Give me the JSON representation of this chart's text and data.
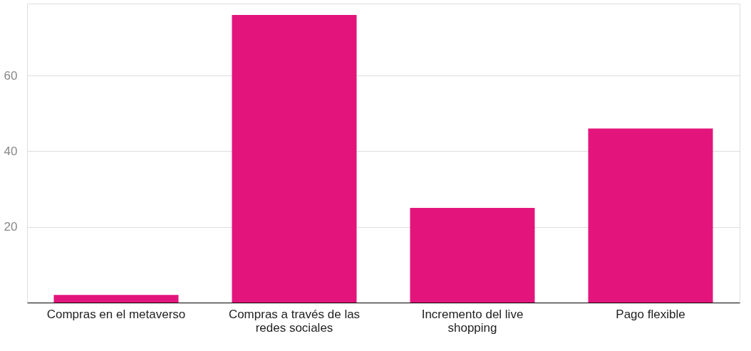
{
  "chart_data": {
    "type": "bar",
    "categories": [
      "Compras en el metaverso",
      "Compras a través de las redes sociales",
      "Incremento del live shopping",
      "Pago flexible"
    ],
    "values": [
      2,
      76,
      25,
      46
    ],
    "color": "#e3157c",
    "ylim": [
      0,
      79
    ],
    "yticks": [
      20,
      40,
      60
    ],
    "grid": "y"
  }
}
